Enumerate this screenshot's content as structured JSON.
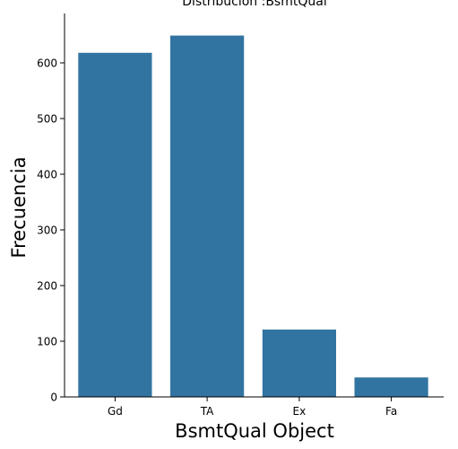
{
  "chart_data": {
    "type": "bar",
    "title": "Distribución :BsmtQual",
    "xlabel": "BsmtQual Object",
    "ylabel": "Frecuencia",
    "categories": [
      "Gd",
      "TA",
      "Ex",
      "Fa"
    ],
    "values": [
      618,
      649,
      121,
      35
    ],
    "ylim": [
      0,
      680
    ],
    "yticks": [
      0,
      100,
      200,
      300,
      400,
      500,
      600
    ],
    "bar_color": "#3274a1",
    "grid": false,
    "legend": "none"
  }
}
